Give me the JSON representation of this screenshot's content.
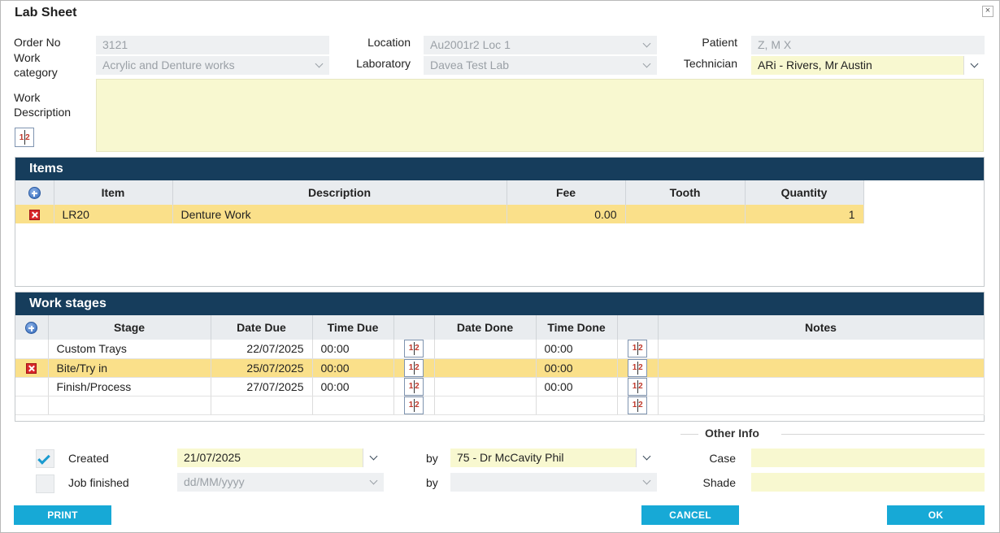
{
  "window": {
    "title": "Lab Sheet",
    "close_glyph": "×"
  },
  "header": {
    "order_no_label": "Order No",
    "order_no_value": "3121",
    "work_category_label": "Work category",
    "work_category_value": "Acrylic and Denture works",
    "location_label": "Location",
    "location_value": "Au2001r2 Loc 1",
    "laboratory_label": "Laboratory",
    "laboratory_value": "Davea Test Lab",
    "patient_label": "Patient",
    "patient_value": "Z, M X",
    "technician_label": "Technician",
    "technician_value": "ARi - Rivers, Mr Austin",
    "work_description_label": "Work Description",
    "work_description_value": ""
  },
  "items": {
    "title": "Items",
    "columns": [
      "Item",
      "Description",
      "Fee",
      "Tooth",
      "Quantity"
    ],
    "rows": [
      {
        "item": "LR20",
        "description": "Denture Work",
        "fee": "0.00",
        "tooth": "",
        "quantity": "1"
      }
    ]
  },
  "stages": {
    "title": "Work stages",
    "columns": [
      "Stage",
      "Date Due",
      "Time Due",
      "Date Done",
      "Time Done",
      "Notes"
    ],
    "rows": [
      {
        "stage": "Custom Trays",
        "date_due": "22/07/2025",
        "time_due": "00:00",
        "date_done": "",
        "time_done": "00:00",
        "notes": ""
      },
      {
        "stage": "Bite/Try in",
        "date_due": "25/07/2025",
        "time_due": "00:00",
        "date_done": "",
        "time_done": "00:00",
        "notes": ""
      },
      {
        "stage": "Finish/Process",
        "date_due": "27/07/2025",
        "time_due": "00:00",
        "date_done": "",
        "time_done": "00:00",
        "notes": ""
      },
      {
        "stage": "",
        "date_due": "",
        "time_due": "",
        "date_done": "",
        "time_done": "",
        "notes": ""
      }
    ]
  },
  "footer": {
    "created_label": "Created",
    "created_date": "21/07/2025",
    "created_by_label": "by",
    "created_by_value": "75 - Dr McCavity Phil",
    "finished_label": "Job finished",
    "finished_date_placeholder": "dd/MM/yyyy",
    "finished_by_label": "by",
    "finished_by_value": "",
    "other_info_title": "Other Info",
    "case_label": "Case",
    "case_value": "",
    "shade_label": "Shade",
    "shade_value": ""
  },
  "buttons": {
    "print": "PRINT",
    "cancel": "CANCEL",
    "ok": "OK"
  },
  "calc_glyph": "1 2"
}
